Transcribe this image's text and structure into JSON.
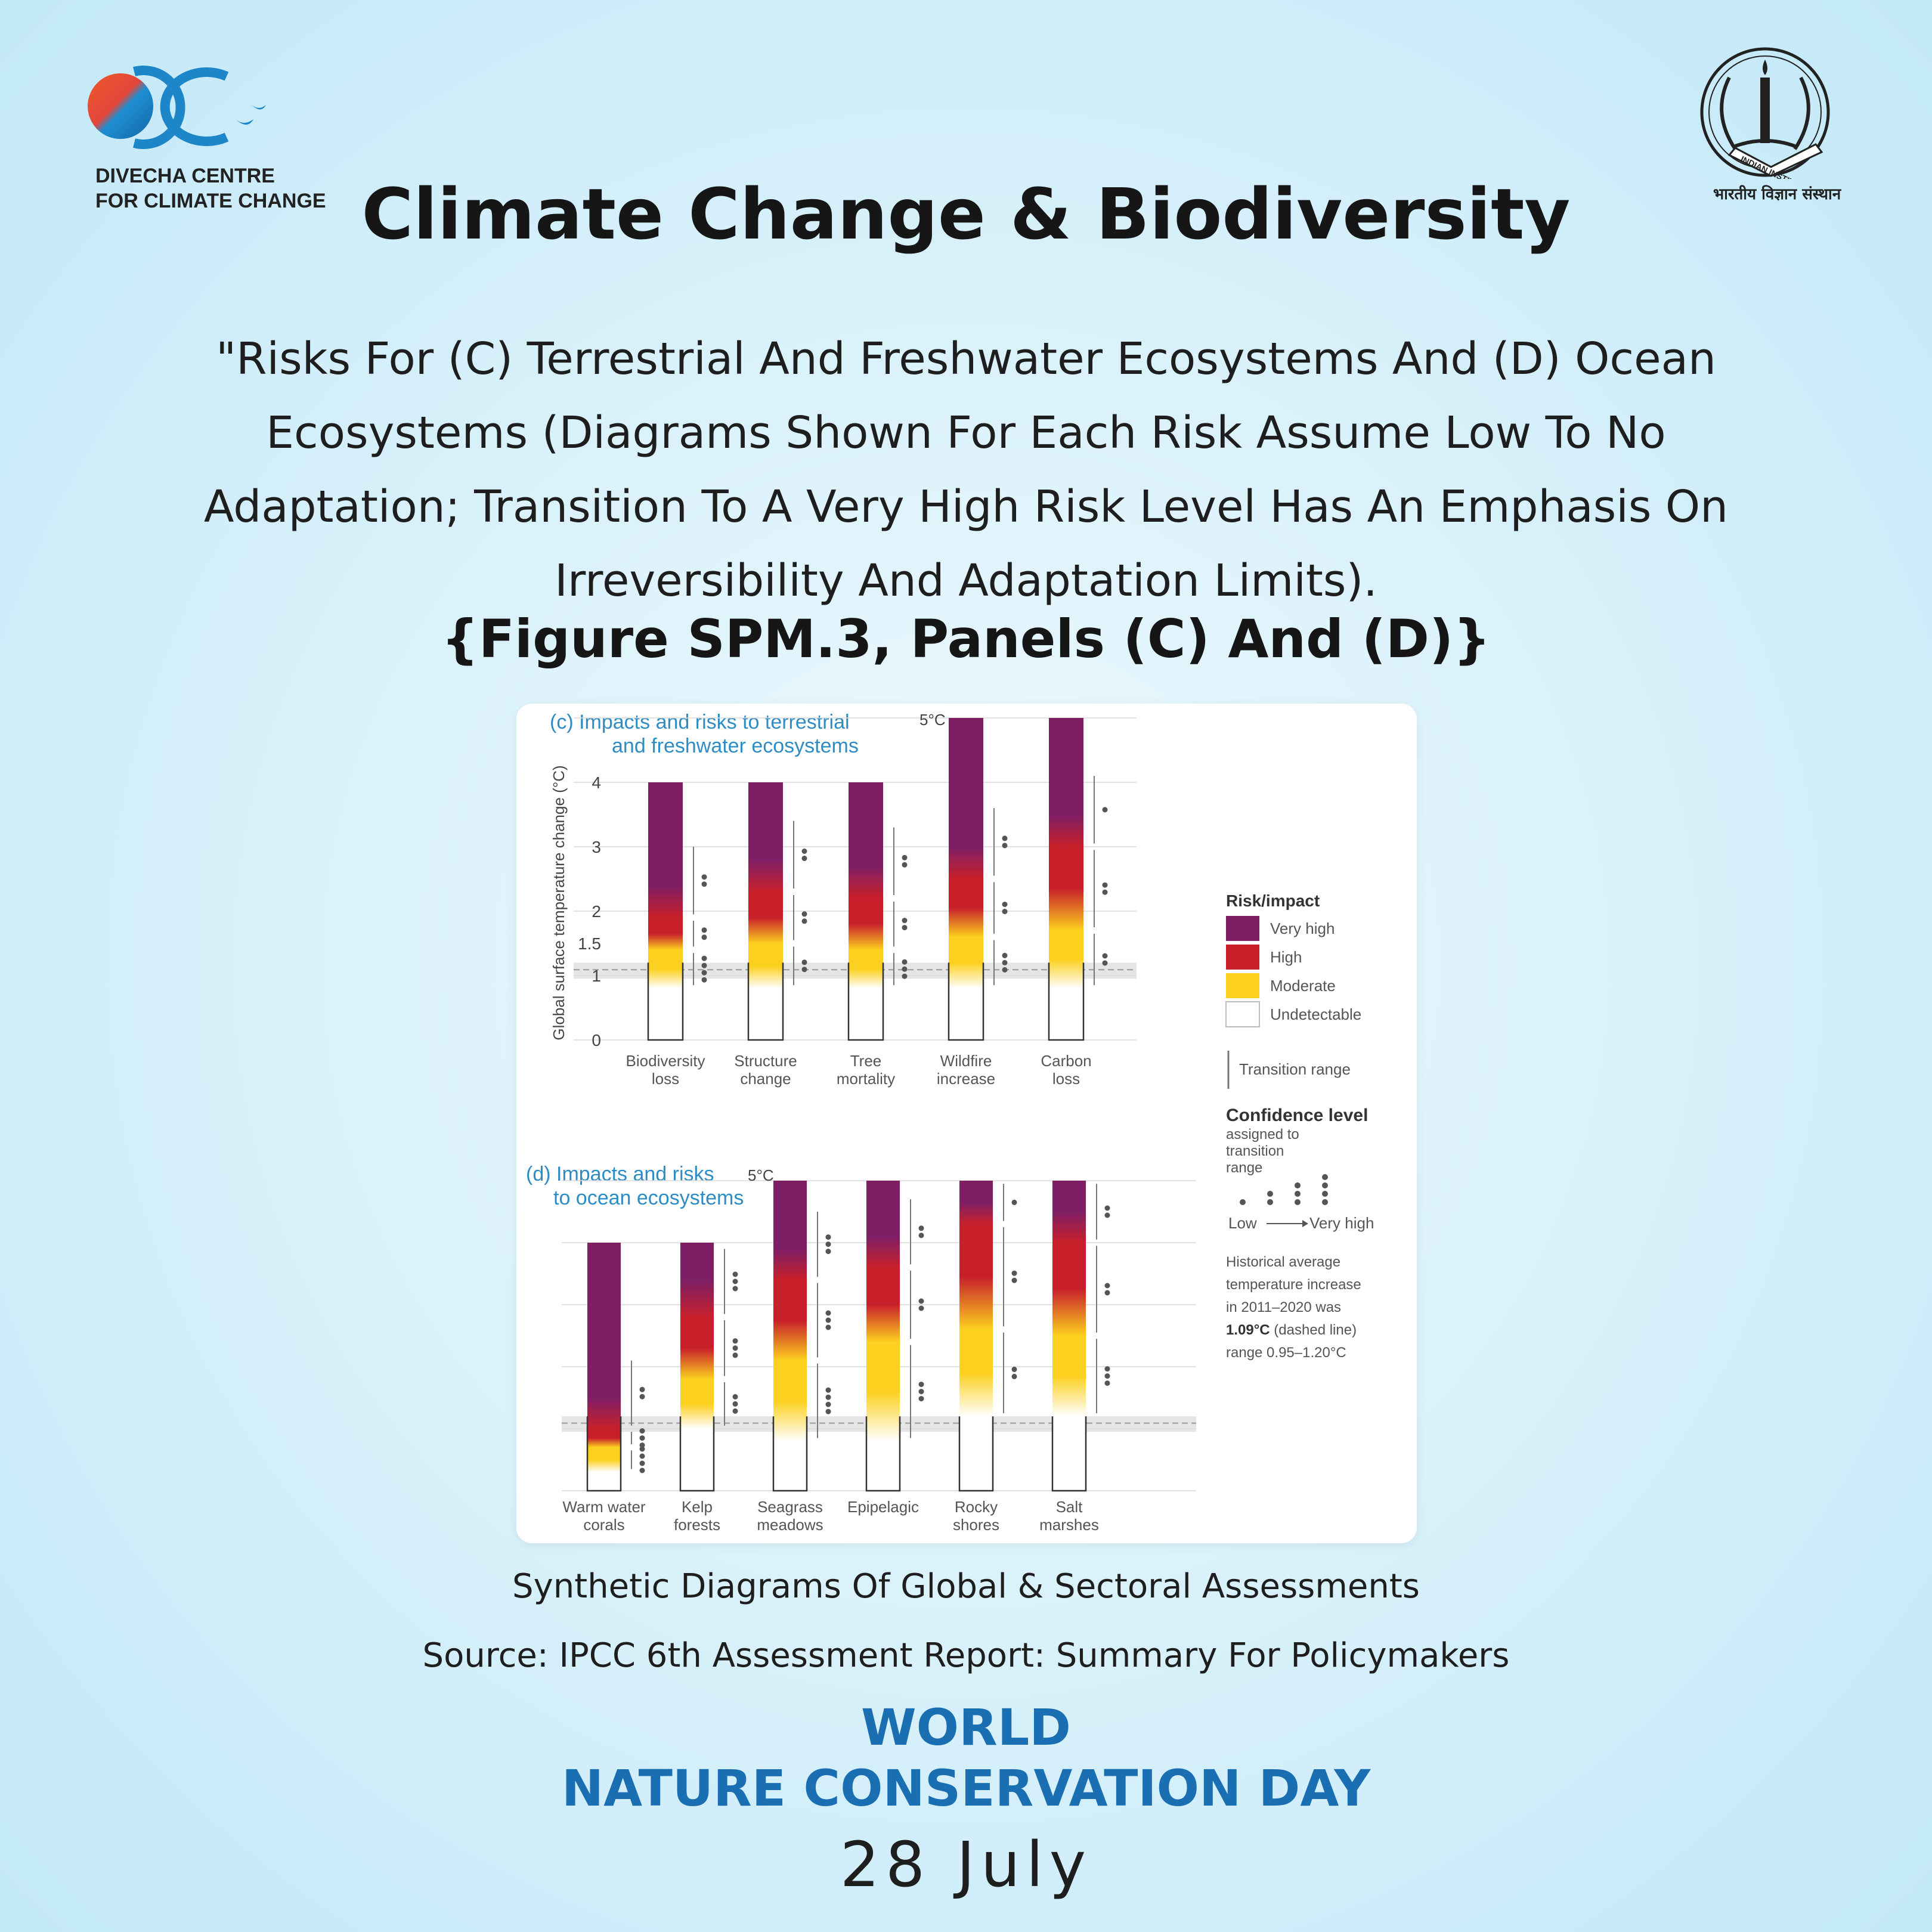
{
  "header": {
    "left_logo": {
      "icon": "divecha-centre-logo",
      "line1": "DIVECHA CENTRE",
      "line2": "FOR CLIMATE CHANGE"
    },
    "right_logo": {
      "icon": "iisc-emblem",
      "ring_text": "INDIAN INSTITUTE OF SCIENCE",
      "hindi": "भारतीय विज्ञान संस्थान"
    },
    "title": "Climate Change & Biodiversity"
  },
  "quote": "\"Risks For (C) Terrestrial And Freshwater Ecosystems And (D) Ocean Ecosystems (Diagrams Shown For Each Risk Assume Low To No Adaptation; Transition To A Very High Risk Level Has An Emphasis On Irreversibility And Adaptation Limits).",
  "figure_ref": "{Figure SPM.3, Panels (C) And (D)}",
  "caption": "Synthetic Diagrams Of Global & Sectoral Assessments",
  "source": "Source: IPCC 6th Assessment Report: Summary For Policymakers",
  "event": {
    "line1": "WORLD",
    "line2": "NATURE CONSERVATION DAY",
    "date": "28 July"
  },
  "colors": {
    "very_high": "#7e1f66",
    "high": "#c8202b",
    "moderate": "#fcd01e",
    "undetectable": "#ffffff",
    "event_blue": "#1a6fb3",
    "panel_title_blue": "#2d8cc6"
  },
  "chart_data": [
    {
      "type": "bar",
      "panel": "(c)",
      "title_line1": "(c) Impacts and risks to terrestrial",
      "title_line2": "and freshwater ecosystems",
      "ylabel": "Global surface temperature change (°C)",
      "yticks": [
        "0",
        "1",
        "1.5",
        "2",
        "3",
        "4"
      ],
      "top_label": "5°C",
      "ylim": [
        0,
        5
      ],
      "historical_avg": 1.09,
      "historical_range": [
        0.95,
        1.2
      ],
      "categories": [
        {
          "l1": "Biodiversity",
          "l2": "loss",
          "top": 4,
          "undetectable_to": 0.8,
          "moderate_to": 1.4,
          "high_to": 1.9,
          "very_high_to": 4,
          "dots": [
            4,
            2,
            2
          ]
        },
        {
          "l1": "Structure",
          "l2": "change",
          "top": 4,
          "undetectable_to": 0.8,
          "moderate_to": 1.5,
          "high_to": 2.3,
          "very_high_to": 4,
          "dots": [
            2,
            2,
            2
          ]
        },
        {
          "l1": "Tree",
          "l2": "mortality",
          "top": 4,
          "undetectable_to": 0.8,
          "moderate_to": 1.4,
          "high_to": 2.2,
          "very_high_to": 4,
          "dots": [
            3,
            2,
            2
          ]
        },
        {
          "l1": "Wildfire",
          "l2": "increase",
          "top": 5,
          "undetectable_to": 0.8,
          "moderate_to": 1.6,
          "high_to": 2.5,
          "very_high_to": 5,
          "dots": [
            3,
            2,
            2
          ]
        },
        {
          "l1": "Carbon",
          "l2": "loss",
          "top": 5,
          "undetectable_to": 0.8,
          "moderate_to": 1.7,
          "high_to": 3.0,
          "very_high_to": 5,
          "dots": [
            2,
            2,
            1
          ]
        }
      ]
    },
    {
      "type": "bar",
      "panel": "(d)",
      "title_line1": "(d) Impacts and risks",
      "title_line2": "to ocean ecosystems",
      "top_label": "5°C",
      "ylim": [
        0,
        5
      ],
      "historical_avg": 1.09,
      "categories": [
        {
          "l1": "Warm water",
          "l2": "corals",
          "top": 4,
          "undetectable_to": 0.3,
          "moderate_to": 0.7,
          "high_to": 1.0,
          "very_high_to": 4,
          "dots": [
            4,
            3,
            2
          ]
        },
        {
          "l1": "Kelp",
          "l2": "forests",
          "top": 4,
          "undetectable_to": 1.0,
          "moderate_to": 1.8,
          "high_to": 2.8,
          "very_high_to": 4,
          "dots": [
            3,
            3,
            3
          ]
        },
        {
          "l1": "Seagrass",
          "l2": "meadows",
          "top": 5,
          "undetectable_to": 0.8,
          "moderate_to": 2.1,
          "high_to": 3.4,
          "very_high_to": 5,
          "dots": [
            4,
            3,
            3
          ]
        },
        {
          "l1": "Epipelagic",
          "l2": "",
          "top": 5,
          "undetectable_to": 0.8,
          "moderate_to": 2.4,
          "high_to": 3.6,
          "very_high_to": 5,
          "dots": [
            3,
            2,
            2
          ]
        },
        {
          "l1": "Rocky",
          "l2": "shores",
          "top": 5,
          "undetectable_to": 1.2,
          "moderate_to": 2.6,
          "high_to": 4.3,
          "very_high_to": 5,
          "dots": [
            2,
            2,
            1
          ]
        },
        {
          "l1": "Salt",
          "l2": "marshes",
          "top": 5,
          "undetectable_to": 1.2,
          "moderate_to": 2.5,
          "high_to": 4.0,
          "very_high_to": 5,
          "dots": [
            3,
            2,
            2
          ]
        }
      ]
    }
  ],
  "legend": {
    "title": "Risk/impact",
    "items": [
      "Very high",
      "High",
      "Moderate",
      "Undetectable"
    ],
    "transition": "Transition range",
    "confidence_title": "Confidence level",
    "confidence_sub": [
      "assigned to",
      "transition",
      "range"
    ],
    "low": "Low",
    "very_high": "Very high",
    "historical": [
      "Historical average",
      "temperature increase",
      "in 2011–2020 was"
    ],
    "hist_value": "1.09°C",
    "hist_rest": " (dashed line)",
    "hist_range": "range 0.95–1.20°C"
  }
}
